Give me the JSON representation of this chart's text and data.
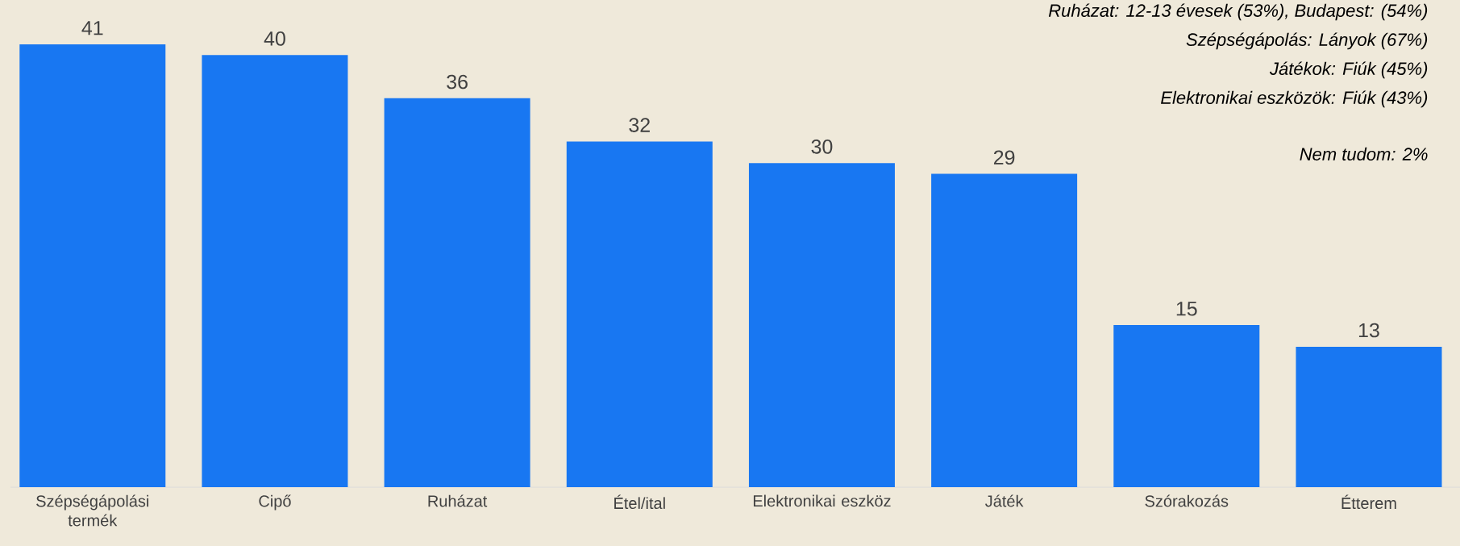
{
  "chart_data": {
    "type": "bar",
    "categories": [
      "Szépségápolási termék",
      "Cipő",
      "Ruházat",
      "Étel/ital",
      "Elektronikai eszköz",
      "Játék",
      "Szórakozás",
      "Étterem"
    ],
    "values": [
      41,
      40,
      36,
      32,
      30,
      29,
      15,
      13
    ],
    "color": "#1877f2",
    "data_labels": true,
    "annotations": [
      "Ruházat: 12-13 évesek (53%), Budapest: (54%)",
      "Szépségápolás: Lányok (67%)",
      "Játékok: Fiúk (45%)",
      "Elektronikai eszközök: Fiúk (43%)",
      "Nem tudom: 2%"
    ]
  }
}
